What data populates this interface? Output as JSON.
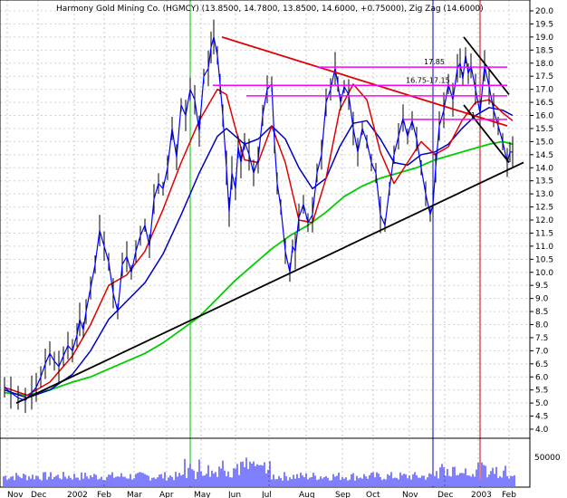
{
  "chart_data": {
    "type": "line",
    "title": "Harmony Gold Mining Co. (HGMCY) (13.8500, 14.7800, 13.8500, 14.6000, +0.75000), Zig Zag (14.6000)",
    "ylim": [
      4.0,
      20.5
    ],
    "yticks": [
      "20.0",
      "19.5",
      "19.0",
      "18.5",
      "18.0",
      "17.5",
      "17.0",
      "16.5",
      "16.0",
      "15.5",
      "15.0",
      "14.5",
      "14.0",
      "13.5",
      "13.0",
      "12.5",
      "12.0",
      "11.5",
      "11.0",
      "10.5",
      "10.0",
      "9.5",
      "9.0",
      "8.5",
      "8.0",
      "7.5",
      "7.0",
      "6.5",
      "6.0",
      "5.5",
      "5.0",
      "4.5",
      "4.0"
    ],
    "months": [
      "Nov",
      "Dec",
      "2002",
      "Feb",
      "Mar",
      "Apr",
      "May",
      "Jun",
      "Jul",
      "Aug",
      "Sep",
      "Oct",
      "Nov",
      "Dec",
      "2003",
      "Feb"
    ],
    "volume_label": "50000",
    "price": {
      "x": [
        5,
        12,
        20,
        28,
        35,
        40,
        45,
        50,
        55,
        60,
        65,
        70,
        75,
        80,
        85,
        88,
        92,
        95,
        100,
        105,
        110,
        115,
        120,
        125,
        130,
        135,
        140,
        145,
        150,
        155,
        160,
        165,
        170,
        175,
        180,
        185,
        190,
        195,
        200,
        205,
        210,
        215,
        220,
        225,
        230,
        233,
        236,
        240,
        243,
        246,
        250,
        253,
        256,
        260,
        263,
        266,
        270,
        275,
        280,
        285,
        290,
        295,
        300,
        303,
        306,
        310,
        315,
        320,
        323,
        326,
        330,
        335,
        340,
        345,
        350,
        355,
        360,
        365,
        370,
        373,
        376,
        380,
        385,
        390,
        395,
        400,
        405,
        410,
        415,
        420,
        425,
        430,
        435,
        440,
        445,
        450,
        455,
        460,
        465,
        470,
        475,
        478,
        481,
        485,
        490,
        495,
        500,
        505,
        508,
        511,
        514,
        517,
        520,
        525,
        530,
        535,
        540,
        545,
        550,
        555,
        560,
        563,
        566
      ],
      "y": [
        5.6,
        5.4,
        5.2,
        5.1,
        5.4,
        5.6,
        6.0,
        6.5,
        6.9,
        6.6,
        6.4,
        6.8,
        7.2,
        7.0,
        7.6,
        8.2,
        7.8,
        8.5,
        9.4,
        10.3,
        11.6,
        11.0,
        10.4,
        9.2,
        8.5,
        10.3,
        10.6,
        10.0,
        10.8,
        11.4,
        11.8,
        11.0,
        12.8,
        13.4,
        13.2,
        14.0,
        15.5,
        14.4,
        16.4,
        16.0,
        17.0,
        16.6,
        15.4,
        17.5,
        17.8,
        18.6,
        19.0,
        18.3,
        17.2,
        16.0,
        14.0,
        12.3,
        13.8,
        13.2,
        14.8,
        14.2,
        15.0,
        14.5,
        13.8,
        14.3,
        16.0,
        17.0,
        17.2,
        15.0,
        13.4,
        12.5,
        10.8,
        10.0,
        11.0,
        10.8,
        12.1,
        12.6,
        11.9,
        12.2,
        13.8,
        14.5,
        16.5,
        17.0,
        17.8,
        17.2,
        16.5,
        17.1,
        16.8,
        15.5,
        14.6,
        15.5,
        15.0,
        14.2,
        13.8,
        12.2,
        11.8,
        13.2,
        14.5,
        15.2,
        15.9,
        15.2,
        15.8,
        15.1,
        14.0,
        13.0,
        12.2,
        12.6,
        14.0,
        15.6,
        16.2,
        17.2,
        16.6,
        17.8,
        18.0,
        17.4,
        18.3,
        17.6,
        17.9,
        17.0,
        16.1,
        17.9,
        17.1,
        16.2,
        15.6,
        15.0,
        14.2,
        14.6,
        14.6
      ]
    },
    "series_ma_short": {
      "x": [
        5,
        30,
        55,
        80,
        100,
        120,
        140,
        160,
        180,
        200,
        220,
        240,
        250,
        260,
        270,
        285,
        300,
        315,
        330,
        345,
        360,
        375,
        390,
        405,
        420,
        435,
        450,
        465,
        480,
        495,
        510,
        525,
        540,
        555,
        566
      ],
      "y": [
        5.6,
        5.3,
        5.8,
        6.8,
        8.0,
        9.5,
        9.9,
        10.8,
        12.4,
        14.2,
        15.8,
        17.0,
        16.8,
        15.5,
        14.3,
        14.2,
        15.6,
        14.2,
        12.0,
        11.9,
        13.6,
        16.2,
        17.2,
        16.6,
        14.6,
        13.4,
        14.2,
        15.0,
        14.5,
        14.8,
        15.8,
        16.5,
        16.6,
        16.1,
        15.8
      ]
    },
    "series_ma_mid": {
      "x": [
        5,
        30,
        55,
        80,
        100,
        120,
        140,
        160,
        180,
        200,
        220,
        240,
        250,
        260,
        270,
        285,
        300,
        315,
        330,
        345,
        360,
        375,
        390,
        405,
        420,
        435,
        450,
        465,
        480,
        495,
        510,
        525,
        540,
        555,
        566
      ],
      "y": [
        5.5,
        5.2,
        5.5,
        6.1,
        7.0,
        8.2,
        8.9,
        9.6,
        10.7,
        12.2,
        13.8,
        15.2,
        15.5,
        15.2,
        14.9,
        15.1,
        15.6,
        15.1,
        14.0,
        13.2,
        13.6,
        14.8,
        15.7,
        15.8,
        15.1,
        14.2,
        14.1,
        14.5,
        14.6,
        14.9,
        15.5,
        16.0,
        16.3,
        16.2,
        16.0
      ]
    },
    "series_ma_long": {
      "x": [
        5,
        30,
        55,
        80,
        100,
        120,
        140,
        160,
        180,
        200,
        220,
        240,
        260,
        280,
        300,
        320,
        340,
        360,
        380,
        400,
        420,
        440,
        460,
        480,
        500,
        520,
        540,
        555,
        566
      ],
      "y": [
        5.4,
        5.3,
        5.5,
        5.8,
        6.0,
        6.3,
        6.6,
        6.9,
        7.3,
        7.8,
        8.3,
        9.0,
        9.7,
        10.3,
        10.9,
        11.4,
        11.8,
        12.3,
        12.9,
        13.3,
        13.6,
        13.8,
        14.0,
        14.3,
        14.5,
        14.7,
        14.9,
        15.0,
        14.9
      ]
    },
    "trendlines": [
      {
        "name": "support",
        "x": [
          18,
          578
        ],
        "y": [
          5.0,
          14.2
        ],
        "color": "#000000"
      },
      {
        "name": "resistance",
        "x": [
          245,
          560
        ],
        "y": [
          19.0,
          15.6
        ],
        "color": "#e00000"
      },
      {
        "name": "channel-top",
        "x": [
          512,
          562
        ],
        "y": [
          19.0,
          16.8
        ],
        "color": "#000000"
      },
      {
        "name": "channel-bottom",
        "x": [
          512,
          562
        ],
        "y": [
          16.4,
          14.2
        ],
        "color": "#000000"
      }
    ],
    "levels": [
      {
        "label": "17.85",
        "value": 17.85,
        "x0": 350,
        "x1": 560
      },
      {
        "label": "16.75-17.15",
        "value": 17.15,
        "x0": 235,
        "x1": 560
      },
      {
        "label": "",
        "value": 16.75,
        "x0": 272,
        "x1": 560
      },
      {
        "label": "",
        "value": 15.85,
        "x0": 445,
        "x1": 560
      }
    ],
    "level_label_small": "1",
    "vertical_markers": [
      {
        "x": 210,
        "color": "#00c000"
      },
      {
        "x": 478,
        "color": "#0000c0"
      },
      {
        "x": 530,
        "color": "#c00000"
      }
    ],
    "colors": {
      "price": "#0000ff",
      "ma_short": "#e00000",
      "ma_mid": "#0000c0",
      "ma_long": "#00cc00",
      "levels": "#ff00ff",
      "volume": "#0000ff"
    }
  }
}
